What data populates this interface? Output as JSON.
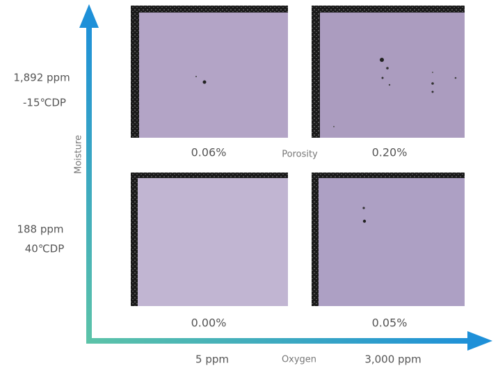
{
  "y_axis": {
    "label": "Moisture",
    "levels": [
      {
        "ppm": "1,892 ppm",
        "dew_point": "-15℃DP"
      },
      {
        "ppm": "188 ppm",
        "dew_point": "40℃DP"
      }
    ]
  },
  "x_axis": {
    "label": "Oxygen",
    "levels": [
      "5 ppm",
      "3,000 ppm"
    ]
  },
  "panel_caption": "Porosity",
  "panels": [
    {
      "porosity": "0.06%"
    },
    {
      "porosity": "0.20%"
    },
    {
      "porosity": "0.00%"
    },
    {
      "porosity": "0.05%"
    }
  ]
}
